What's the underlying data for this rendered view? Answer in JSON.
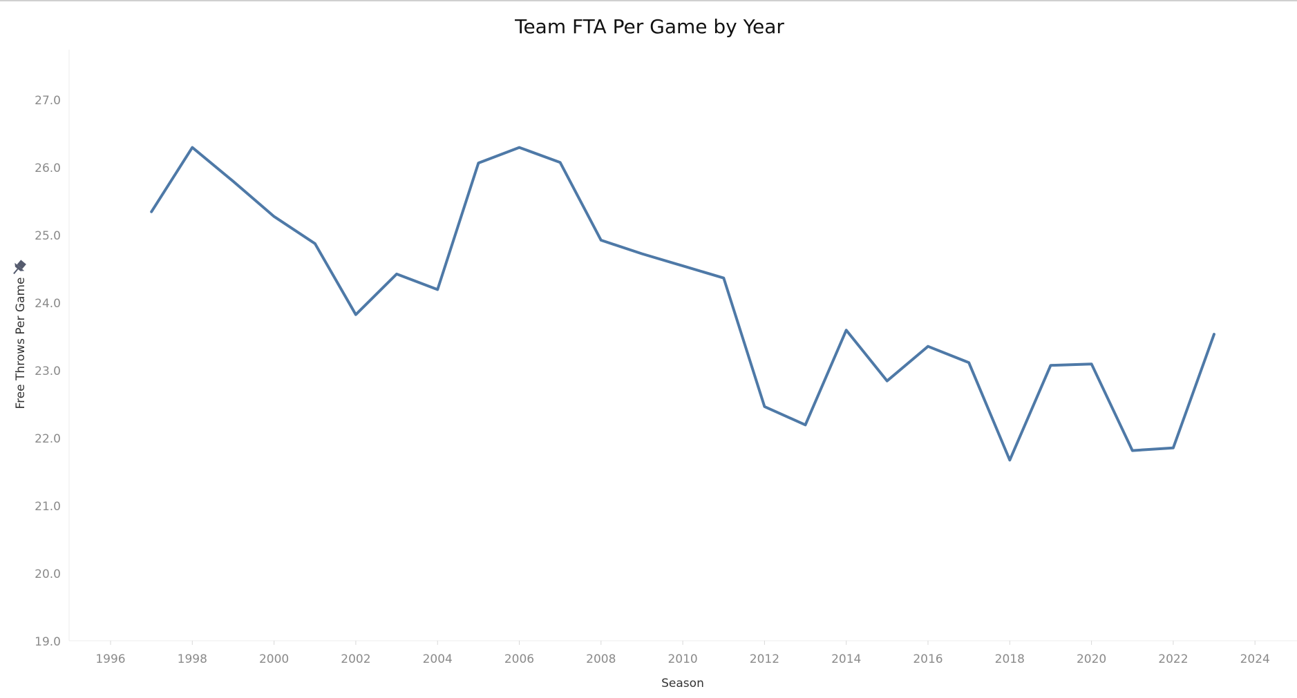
{
  "chart_data": {
    "type": "line",
    "title": "Team FTA Per Game by Year",
    "xlabel": "Season",
    "ylabel": "Free Throws Per Game",
    "xlim": [
      1995,
      2025
    ],
    "ylim": [
      19.0,
      27.7
    ],
    "x_ticks": [
      1996,
      1998,
      2000,
      2002,
      2004,
      2006,
      2008,
      2010,
      2012,
      2014,
      2016,
      2018,
      2020,
      2022,
      2024
    ],
    "y_ticks": [
      "19.0",
      "20.0",
      "21.0",
      "22.0",
      "23.0",
      "24.0",
      "25.0",
      "26.0",
      "27.0"
    ],
    "y_tick_values": [
      19,
      20,
      21,
      22,
      23,
      24,
      25,
      26,
      27
    ],
    "grid": false,
    "line_color": "#4e79a7",
    "pin_icon": "pin-icon",
    "series": [
      {
        "x": [
          1997,
          1998,
          1999,
          2000,
          2001,
          2002,
          2003,
          2004,
          2005,
          2006,
          2007,
          2008,
          2009,
          2010,
          2011,
          2012,
          2013,
          2014,
          2015,
          2016,
          2017,
          2018,
          2019,
          2020,
          2021,
          2022,
          2023
        ],
        "values": [
          25.35,
          26.3,
          25.8,
          25.28,
          24.88,
          23.83,
          24.43,
          24.2,
          26.07,
          26.3,
          26.08,
          24.93,
          24.73,
          24.55,
          24.37,
          22.47,
          22.2,
          23.6,
          22.85,
          23.36,
          23.12,
          21.68,
          23.08,
          23.1,
          21.82,
          21.86,
          23.54
        ]
      }
    ]
  }
}
